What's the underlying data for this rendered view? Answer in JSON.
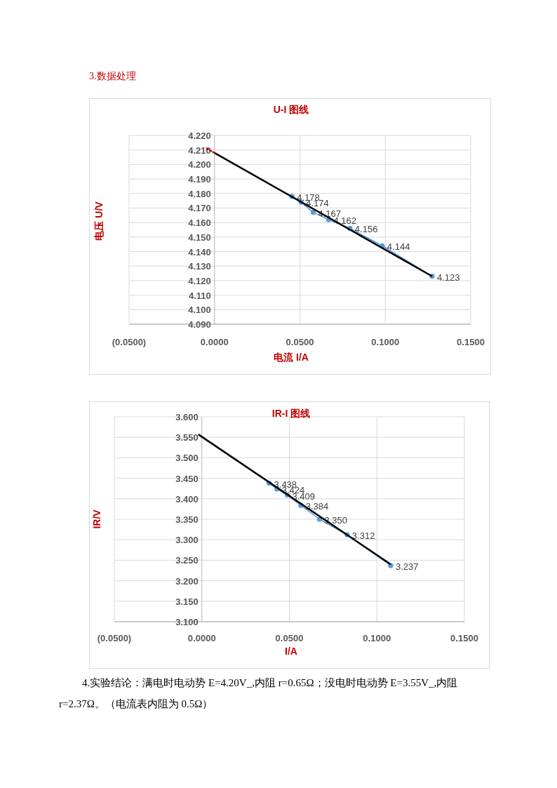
{
  "chart_data": [
    {
      "type": "line",
      "title": "U-I 图线",
      "xlabel": "电流 I/A",
      "ylabel": "电压 U/V",
      "annotations": [
        "3.数据处理"
      ],
      "x": [
        0.0454,
        0.0507,
        0.0578,
        0.0668,
        0.0793,
        0.0982,
        0.1274
      ],
      "series": [
        {
          "color": "#5b9bd5",
          "values": [
            4.178,
            4.174,
            4.167,
            4.162,
            4.156,
            4.144,
            4.123
          ],
          "value_labels": [
            "4.178",
            "4.174",
            "4.167",
            "4.162",
            "4.156",
            "4.144",
            "4.123"
          ]
        },
        {
          "color": "#000000",
          "marker": "none",
          "x": [
            0,
            0.1274
          ],
          "values": [
            4.208,
            4.123
          ]
        },
        {
          "color": "#c00000",
          "marker": "none",
          "line_style": "dotted",
          "x": [
            -0.0045,
            0
          ],
          "values": [
            4.211,
            4.208
          ]
        }
      ],
      "xlim": [
        -0.05,
        0.15
      ],
      "xticks": [
        {
          "value": -0.05,
          "label": "(0.0500)"
        },
        {
          "value": 0,
          "label": "0.0000"
        },
        {
          "value": 0.05,
          "label": "0.0500"
        },
        {
          "value": 0.1,
          "label": "0.1000"
        },
        {
          "value": 0.15,
          "label": "0.1500"
        }
      ],
      "ylim": [
        4.09,
        4.22
      ],
      "yticks": [
        {
          "value": 4.09,
          "label": "4.090"
        },
        {
          "value": 4.1,
          "label": "4.100"
        },
        {
          "value": 4.11,
          "label": "4.110"
        },
        {
          "value": 4.12,
          "label": "4.120"
        },
        {
          "value": 4.13,
          "label": "4.130"
        },
        {
          "value": 4.14,
          "label": "4.140"
        },
        {
          "value": 4.15,
          "label": "4.150"
        },
        {
          "value": 4.16,
          "label": "4.160"
        },
        {
          "value": 4.17,
          "label": "4.170"
        },
        {
          "value": 4.18,
          "label": "4.180"
        },
        {
          "value": 4.19,
          "label": "4.190"
        },
        {
          "value": 4.2,
          "label": "4.200"
        },
        {
          "value": 4.21,
          "label": "4.210"
        },
        {
          "value": 4.22,
          "label": "4.220"
        }
      ],
      "grid": true,
      "marker": "circle"
    },
    {
      "type": "line",
      "title": "IR-I 图线",
      "xlabel": "I/A",
      "ylabel": "IR/V",
      "annotations": [
        "4.实验结论：满电时电动势 E=4.20V_,内阻 r=0.65Ω；没电时电动势 E=3.55V_,内阻 r=2.37Ω。（电流表内阻为 0.5Ω）"
      ],
      "x": [
        0.0384,
        0.0429,
        0.0488,
        0.0565,
        0.0672,
        0.083,
        0.1079
      ],
      "series": [
        {
          "color": "#5b9bd5",
          "values": [
            3.438,
            3.424,
            3.409,
            3.384,
            3.35,
            3.312,
            3.237
          ],
          "value_labels": [
            "3.438",
            "3.424",
            "3.409",
            "3.384",
            "3.350",
            "3.312",
            "3.237"
          ]
        },
        {
          "color": "#000000",
          "marker": "none",
          "x": [
            -0.002,
            0.1079
          ],
          "values": [
            3.557,
            3.24
          ]
        }
      ],
      "xlim": [
        -0.05,
        0.15
      ],
      "xticks": [
        {
          "value": -0.05,
          "label": "(0.0500)"
        },
        {
          "value": 0,
          "label": "0.0000"
        },
        {
          "value": 0.05,
          "label": "0.0500"
        },
        {
          "value": 0.1,
          "label": "0.1000"
        },
        {
          "value": 0.15,
          "label": "0.1500"
        }
      ],
      "ylim": [
        3.1,
        3.6
      ],
      "yticks": [
        {
          "value": 3.1,
          "label": "3.100"
        },
        {
          "value": 3.15,
          "label": "3.150"
        },
        {
          "value": 3.2,
          "label": "3.200"
        },
        {
          "value": 3.25,
          "label": "3.250"
        },
        {
          "value": 3.3,
          "label": "3.300"
        },
        {
          "value": 3.35,
          "label": "3.350"
        },
        {
          "value": 3.4,
          "label": "3.400"
        },
        {
          "value": 3.45,
          "label": "3.450"
        },
        {
          "value": 3.5,
          "label": "3.500"
        },
        {
          "value": 3.55,
          "label": "3.550"
        },
        {
          "value": 3.6,
          "label": "3.600"
        }
      ],
      "grid": true,
      "marker": "circle"
    }
  ]
}
